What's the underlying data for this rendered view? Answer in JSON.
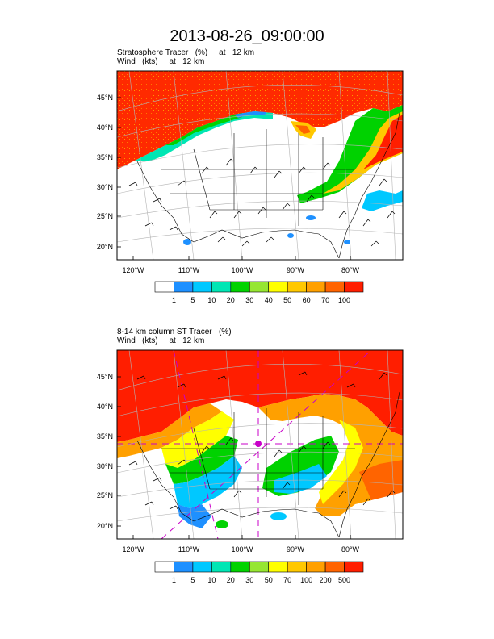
{
  "title": "2013-08-26_09:00:00",
  "panels": [
    {
      "line1": "Stratosphere Tracer   (%)     at   12 km",
      "line2": "Wind   (kts)     at   12 km",
      "lat_labels": [
        "45°N",
        "40°N",
        "35°N",
        "30°N",
        "25°N",
        "20°N"
      ],
      "lon_labels": [
        "120°W",
        "110°W",
        "100°W",
        "90°W",
        "80°W"
      ],
      "colorbar": {
        "colors": [
          "#ffffff",
          "#1e90ff",
          "#00c8ff",
          "#00e6b4",
          "#00d200",
          "#96e632",
          "#ffff00",
          "#ffc800",
          "#ffa000",
          "#ff6400",
          "#ff1e00"
        ],
        "labels": [
          "1",
          "5",
          "10",
          "20",
          "30",
          "40",
          "50",
          "60",
          "70",
          "100"
        ]
      }
    },
    {
      "line1": "8-14 km column ST Tracer   (%)",
      "line2": "Wind   (kts)     at   12 km",
      "lat_labels": [
        "45°N",
        "40°N",
        "35°N",
        "30°N",
        "25°N",
        "20°N"
      ],
      "lon_labels": [
        "120°W",
        "110°W",
        "100°W",
        "90°W",
        "80°W"
      ],
      "colorbar": {
        "colors": [
          "#ffffff",
          "#1e90ff",
          "#00c8ff",
          "#00e6b4",
          "#00d200",
          "#96e632",
          "#ffff00",
          "#ffc800",
          "#ffa000",
          "#ff6400",
          "#ff1e00"
        ],
        "labels": [
          "1",
          "5",
          "10",
          "20",
          "30",
          "50",
          "70",
          "100",
          "200",
          "500"
        ]
      }
    }
  ]
}
